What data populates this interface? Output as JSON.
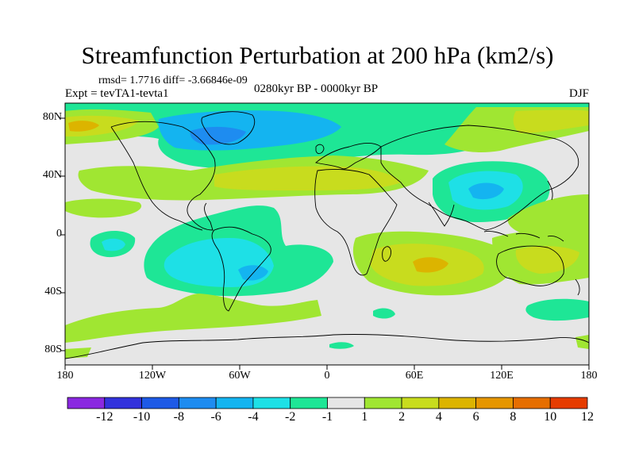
{
  "title": "Streamfunction Perturbation at 200 hPa (km2/s)",
  "stats": "rmsd= 1.7716  diff= -3.66846e-09",
  "expt": "Expt = tevTA1-tevta1",
  "period": "0280kyr BP - 0000kyr BP",
  "season": "DJF",
  "axes": {
    "y_labels": [
      "80N",
      "40N",
      "0",
      "40S",
      "80S"
    ],
    "x_labels": [
      "180",
      "120W",
      "60W",
      "0",
      "60E",
      "120E",
      "180"
    ]
  },
  "colorbar": {
    "colors": [
      "#8a28e0",
      "#3232dc",
      "#1e5ae6",
      "#1e8cf0",
      "#14b4f0",
      "#1ee0e6",
      "#1ee696",
      "#e6e6e6",
      "#a0e632",
      "#c8dc1e",
      "#dcb400",
      "#e69600",
      "#e66e00",
      "#e63c00"
    ],
    "labels": [
      "-12",
      "-10",
      "-8",
      "-6",
      "-4",
      "-2",
      "-1",
      "1",
      "2",
      "4",
      "6",
      "8",
      "10",
      "12"
    ]
  },
  "chart_data": {
    "type": "contour-map",
    "variable": "200 hPa streamfunction perturbation",
    "units": "km2/s",
    "xlim": [
      -180,
      180
    ],
    "ylim": [
      -90,
      90
    ],
    "levels": [
      -12,
      -10,
      -8,
      -6,
      -4,
      -2,
      -1,
      1,
      2,
      4,
      6,
      8,
      10,
      12
    ],
    "features": [
      {
        "region": "Arctic / Greenland / N. Atlantic",
        "sign": "negative",
        "min_level": -6
      },
      {
        "region": "East Asia (30-45N, 90-130E)",
        "sign": "negative",
        "min_level": -6
      },
      {
        "region": "North Pacific / N. America (70N)",
        "sign": "positive",
        "max_level": 4
      },
      {
        "region": "Mid-latitude band N. Atlantic (30-40N)",
        "sign": "positive",
        "max_level": 4
      },
      {
        "region": "South America / S. Atlantic",
        "sign": "negative",
        "min_level": -6
      },
      {
        "region": "S. Indian Ocean (20-40S, 60E)",
        "sign": "positive",
        "max_level": 6
      },
      {
        "region": "N. Pacific 40N 170W",
        "sign": "positive",
        "max_level": 2
      }
    ]
  }
}
